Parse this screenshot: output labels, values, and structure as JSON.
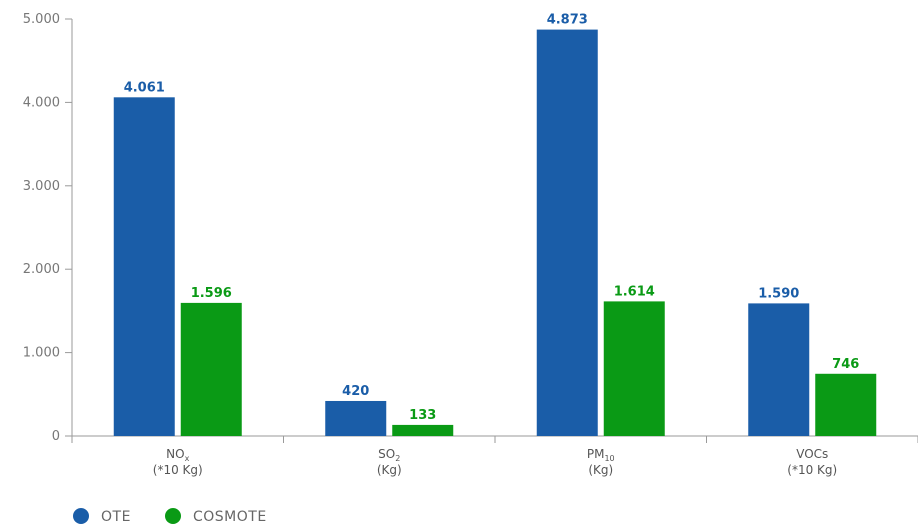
{
  "chart_data": {
    "type": "bar",
    "categories": [
      {
        "main": "NO",
        "sub": "x",
        "unit": "(*10 Kg)"
      },
      {
        "main": "SO",
        "sub": "2",
        "unit": "(Kg)"
      },
      {
        "main": "PM",
        "sub": "10",
        "unit": "(Kg)"
      },
      {
        "main": "VOCs",
        "sub": "",
        "unit": "(*10 Kg)"
      }
    ],
    "series": [
      {
        "name": "OTE",
        "color": "#1a5da8",
        "values": [
          4061,
          420,
          4873,
          1590
        ],
        "labels": [
          "4.061",
          "420",
          "4.873",
          "1.590"
        ]
      },
      {
        "name": "COSMOTE",
        "color": "#0a9a15",
        "values": [
          1596,
          133,
          1614,
          746
        ],
        "labels": [
          "1.596",
          "133",
          "1.614",
          "746"
        ]
      }
    ],
    "ylim": [
      0,
      5000
    ],
    "yticks": [
      {
        "value": 0,
        "label": "0"
      },
      {
        "value": 1000,
        "label": "1.000"
      },
      {
        "value": 2000,
        "label": "2.000"
      },
      {
        "value": 3000,
        "label": "3.000"
      },
      {
        "value": 4000,
        "label": "4.000"
      },
      {
        "value": 5000,
        "label": "5.000"
      }
    ],
    "grid": false,
    "legend_position": "bottom-left"
  },
  "legend": {
    "items": [
      {
        "label": "OTE",
        "color": "#1a5da8"
      },
      {
        "label": "COSMOTE",
        "color": "#0a9a15"
      }
    ]
  }
}
